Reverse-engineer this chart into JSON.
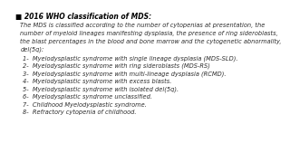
{
  "background_color": "#ffffff",
  "bullet_char": "■",
  "title": "2016 WHO classification of MDS:",
  "intro": "The MDS is classified according to the number of cytopenias at presentation, the\nnumber of myeloid lineages manifesting dysplasia, the presence of ring sideroblasts,\nthe blast percentages in the blood and bone marrow and the cytogenetic abnormality,\ndel(5q):",
  "items": [
    "1-  Myelodysplastic syndrome with single lineage dysplasia (MDS-SLD).",
    "2-  Myelodysplastic syndrome with ring sideroblasts (MDS-RS)",
    "3-  Myelodysplastic syndrome with multi-lineage dysplasia (RCMD).",
    "4-  Myelodysplastic syndrome with excess blasts.",
    "5-  Myelodysplastic syndrome with isolated del(5q).",
    "6-  Myelodysplastic syndrome unclassified.",
    "7-  Childhood Myelodysplastic syndrome.",
    "8-  Refractory cytopenia of childhood."
  ],
  "title_fontsize": 5.5,
  "intro_fontsize": 4.8,
  "item_fontsize": 4.8,
  "text_color": "#2d2d2d",
  "title_color": "#000000"
}
